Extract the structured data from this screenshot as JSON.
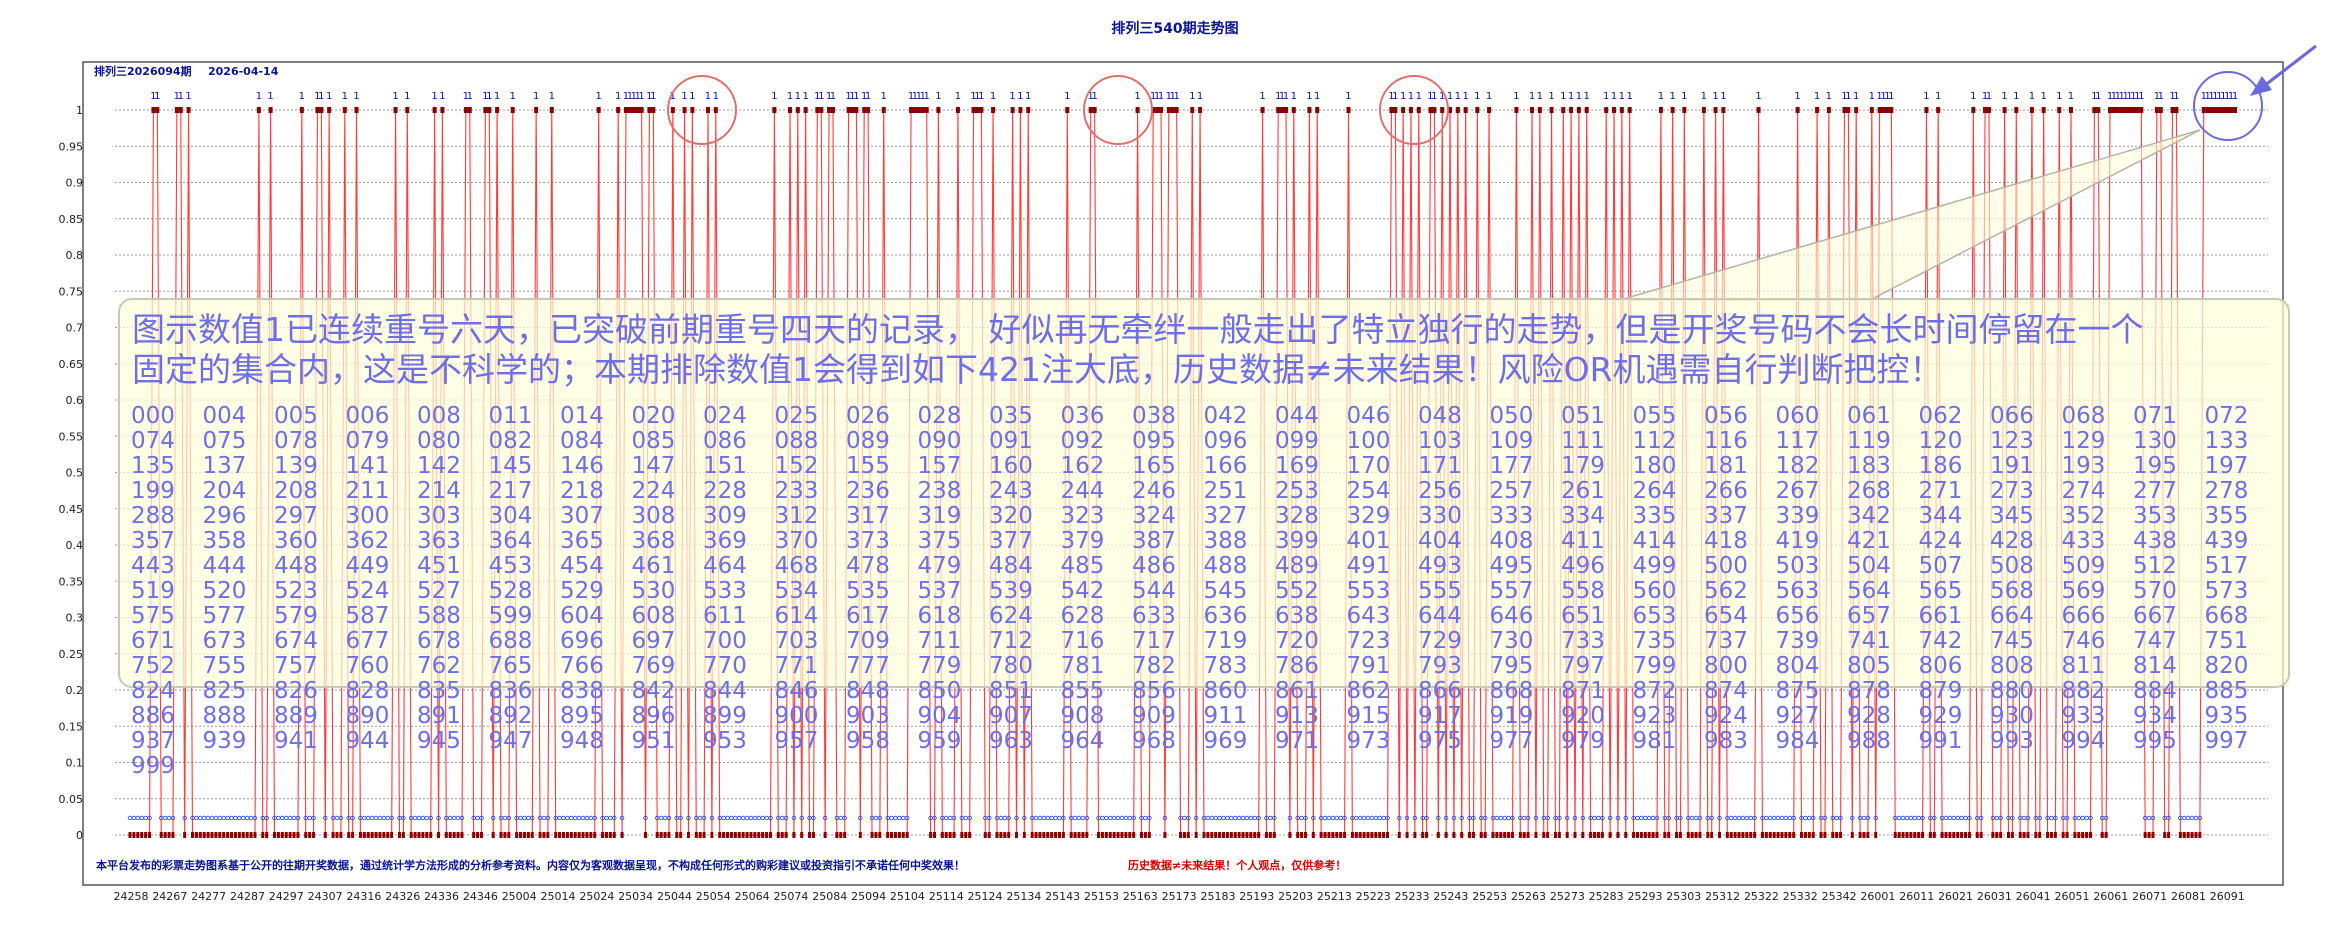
{
  "page_title": "排列三540期走势图",
  "chart_header": {
    "issue_label": "排列三2026094期",
    "date": "2026-04-14"
  },
  "colors": {
    "line": "#ff3b3b",
    "marker": "#8b0000",
    "zero_marker": "#1e3cff",
    "title": "#0a1496",
    "annotation_circle_red": "#e0706a",
    "annotation_circle_blue": "#6a6ae0",
    "bubble_text": "#6e6ee6",
    "footer_red": "#dd0000"
  },
  "annotation": {
    "line1": "图示数值1已连续重号六天，已突破前期重号四天的记录， 好似再无牵绊一般走出了特立独行的走势，但是开奖号码不会长时间停留在一个",
    "line2": "固定的集合内，这是不科学的；本期排除数值1会得到如下421注大底，历史数据≠未来结果！风险OR机遇需自行判断把控！",
    "numbers": [
      "000",
      "004",
      "005",
      "006",
      "008",
      "011",
      "014",
      "020",
      "024",
      "025",
      "026",
      "028",
      "035",
      "036",
      "038",
      "042",
      "044",
      "046",
      "048",
      "050",
      "051",
      "055",
      "056",
      "060",
      "061",
      "062",
      "066",
      "068",
      "071",
      "072",
      "074",
      "075",
      "078",
      "079",
      "080",
      "082",
      "084",
      "085",
      "086",
      "088",
      "089",
      "090",
      "091",
      "092",
      "095",
      "096",
      "099",
      "100",
      "103",
      "109",
      "111",
      "112",
      "116",
      "117",
      "119",
      "120",
      "123",
      "129",
      "130",
      "133",
      "135",
      "137",
      "139",
      "141",
      "142",
      "145",
      "146",
      "147",
      "151",
      "152",
      "155",
      "157",
      "160",
      "162",
      "165",
      "166",
      "169",
      "170",
      "171",
      "177",
      "179",
      "180",
      "181",
      "182",
      "183",
      "186",
      "191",
      "193",
      "195",
      "197",
      "199",
      "204",
      "208",
      "211",
      "214",
      "217",
      "218",
      "224",
      "228",
      "233",
      "236",
      "238",
      "243",
      "244",
      "246",
      "251",
      "253",
      "254",
      "256",
      "257",
      "261",
      "264",
      "266",
      "267",
      "268",
      "271",
      "273",
      "274",
      "277",
      "278",
      "288",
      "296",
      "297",
      "300",
      "303",
      "304",
      "307",
      "308",
      "309",
      "312",
      "317",
      "319",
      "320",
      "323",
      "324",
      "327",
      "328",
      "329",
      "330",
      "333",
      "334",
      "335",
      "337",
      "339",
      "342",
      "344",
      "345",
      "352",
      "353",
      "355",
      "357",
      "358",
      "360",
      "362",
      "363",
      "364",
      "365",
      "368",
      "369",
      "370",
      "373",
      "375",
      "377",
      "379",
      "387",
      "388",
      "399",
      "401",
      "404",
      "408",
      "411",
      "414",
      "418",
      "419",
      "421",
      "424",
      "428",
      "433",
      "438",
      "439",
      "443",
      "444",
      "448",
      "449",
      "451",
      "453",
      "454",
      "461",
      "464",
      "468",
      "478",
      "479",
      "484",
      "485",
      "486",
      "488",
      "489",
      "491",
      "493",
      "495",
      "496",
      "499",
      "500",
      "503",
      "504",
      "507",
      "508",
      "509",
      "512",
      "517",
      "519",
      "520",
      "523",
      "524",
      "527",
      "528",
      "529",
      "530",
      "533",
      "534",
      "535",
      "537",
      "539",
      "542",
      "544",
      "545",
      "552",
      "553",
      "555",
      "557",
      "558",
      "560",
      "562",
      "563",
      "564",
      "565",
      "568",
      "569",
      "570",
      "573",
      "575",
      "577",
      "579",
      "587",
      "588",
      "599",
      "604",
      "608",
      "611",
      "614",
      "617",
      "618",
      "624",
      "628",
      "633",
      "636",
      "638",
      "643",
      "644",
      "646",
      "651",
      "653",
      "654",
      "656",
      "657",
      "661",
      "664",
      "666",
      "667",
      "668",
      "671",
      "673",
      "674",
      "677",
      "678",
      "688",
      "696",
      "697",
      "700",
      "703",
      "709",
      "711",
      "712",
      "716",
      "717",
      "719",
      "720",
      "723",
      "729",
      "730",
      "733",
      "735",
      "737",
      "739",
      "741",
      "742",
      "745",
      "746",
      "747",
      "751",
      "752",
      "755",
      "757",
      "760",
      "762",
      "765",
      "766",
      "769",
      "770",
      "771",
      "777",
      "779",
      "780",
      "781",
      "782",
      "783",
      "786",
      "791",
      "793",
      "795",
      "797",
      "799",
      "800",
      "804",
      "805",
      "806",
      "808",
      "811",
      "814",
      "820",
      "824",
      "825",
      "826",
      "828",
      "835",
      "836",
      "838",
      "842",
      "844",
      "846",
      "848",
      "850",
      "851",
      "855",
      "856",
      "860",
      "861",
      "862",
      "866",
      "868",
      "871",
      "872",
      "874",
      "875",
      "878",
      "879",
      "880",
      "882",
      "884",
      "885",
      "886",
      "888",
      "889",
      "890",
      "891",
      "892",
      "895",
      "896",
      "899",
      "900",
      "903",
      "904",
      "907",
      "908",
      "909",
      "911",
      "913",
      "915",
      "917",
      "919",
      "920",
      "923",
      "924",
      "927",
      "928",
      "929",
      "930",
      "933",
      "934",
      "935",
      "937",
      "939",
      "941",
      "944",
      "945",
      "947",
      "948",
      "951",
      "953",
      "957",
      "958",
      "959",
      "963",
      "964",
      "968",
      "969",
      "971",
      "973",
      "975",
      "977",
      "979",
      "981",
      "983",
      "984",
      "988",
      "991",
      "993",
      "994",
      "995",
      "997",
      "999"
    ]
  },
  "footer": {
    "text_blue": "本平台发布的彩票走势图系基于公开的往期开奖数据，通过统计学方法形成的分析参考资料。内容仅为客观数据呈现，不构成任何形式的购彩建议或投资指引不承诺任何中奖效果！",
    "text_red": "历史数据≠未来结果！个人观点，仅供参考！"
  },
  "chart_data": {
    "type": "line",
    "title": "排列三540期走势图",
    "xlabel": "",
    "ylabel": "",
    "ylim": [
      0,
      1
    ],
    "grid": true,
    "grid_style": "dotted horizontal",
    "legend": "none",
    "y_ticks": [
      "0",
      "0.05",
      "0.1",
      "0.15",
      "0.2",
      "0.25",
      "0.3",
      "0.35",
      "0.4",
      "0.45",
      "0.5",
      "0.55",
      "0.6",
      "0.65",
      "0.7",
      "0.75",
      "0.8",
      "0.85",
      "0.9",
      "0.95",
      "1"
    ],
    "x_tick_labels": [
      "24258",
      "24267",
      "24277",
      "24287",
      "24297",
      "24307",
      "24316",
      "24326",
      "24336",
      "24346",
      "25004",
      "25014",
      "25024",
      "25034",
      "25044",
      "25054",
      "25064",
      "25074",
      "25084",
      "25094",
      "25104",
      "25114",
      "25124",
      "25134",
      "25143",
      "25153",
      "25163",
      "25173",
      "25183",
      "25193",
      "25203",
      "25213",
      "25223",
      "25233",
      "25243",
      "25253",
      "25263",
      "25273",
      "25283",
      "25293",
      "25303",
      "25312",
      "25322",
      "25332",
      "25342",
      "26001",
      "26011",
      "26021",
      "26031",
      "26041",
      "26051",
      "26061",
      "26071",
      "26081",
      "26091"
    ],
    "point_count": 540,
    "value_one_indices": [
      6,
      7,
      12,
      13,
      15,
      33,
      36,
      44,
      48,
      49,
      51,
      55,
      58,
      68,
      71,
      78,
      80,
      86,
      87,
      91,
      92,
      94,
      98,
      104,
      108,
      120,
      125,
      127,
      128,
      129,
      130,
      131,
      133,
      134,
      139,
      142,
      144,
      148,
      150,
      165,
      169,
      171,
      173,
      176,
      177,
      179,
      180,
      184,
      185,
      186,
      188,
      189,
      193,
      200,
      201,
      202,
      203,
      204,
      207,
      212,
      216,
      217,
      218,
      221,
      226,
      228,
      230,
      240,
      246,
      247,
      258,
      262,
      263,
      264,
      266,
      267,
      268,
      272,
      274,
      290,
      294,
      295,
      296,
      298,
      302,
      304,
      312,
      323,
      324,
      326,
      328,
      330,
      333,
      334,
      336,
      338,
      340,
      342,
      345,
      348,
      355,
      359,
      361,
      364,
      367,
      369,
      371,
      373,
      378,
      380,
      382,
      384,
      392,
      395,
      398,
      403,
      406,
      408,
      417,
      427,
      432,
      435,
      439,
      440,
      442,
      446,
      448,
      449,
      450,
      451,
      460,
      463,
      472,
      475,
      476,
      480,
      483,
      487,
      490,
      494,
      497,
      503,
      504,
      507,
      508,
      509,
      510,
      511,
      512,
      513,
      514,
      515,
      519,
      520,
      523,
      524,
      531,
      532,
      533,
      534,
      535,
      536,
      537,
      538,
      539
    ]
  }
}
